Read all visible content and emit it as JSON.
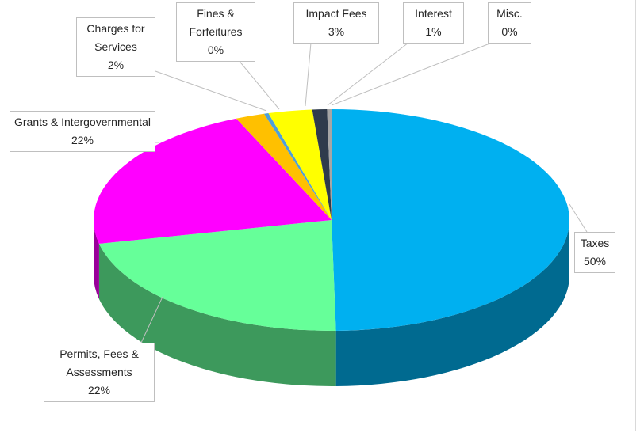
{
  "chart_data": {
    "type": "pie3d",
    "categories": [
      "Taxes",
      "Permits, Fees & Assessments",
      "Grants & Intergovernmental",
      "Charges for Services",
      "Fines & Forfeitures",
      "Impact Fees",
      "Interest",
      "Misc."
    ],
    "values": [
      50,
      22,
      22,
      2,
      0.3,
      3,
      1,
      0.3
    ],
    "value_labels": [
      "50%",
      "22%",
      "22%",
      "2%",
      "0%",
      "3%",
      "1%",
      "0%"
    ],
    "colors": [
      "#00b0f0",
      "#66ff99",
      "#ff00ff",
      "#ffc000",
      "#4f9fd8",
      "#ffff00",
      "#2f3b4c",
      "#a6a6a6"
    ]
  }
}
